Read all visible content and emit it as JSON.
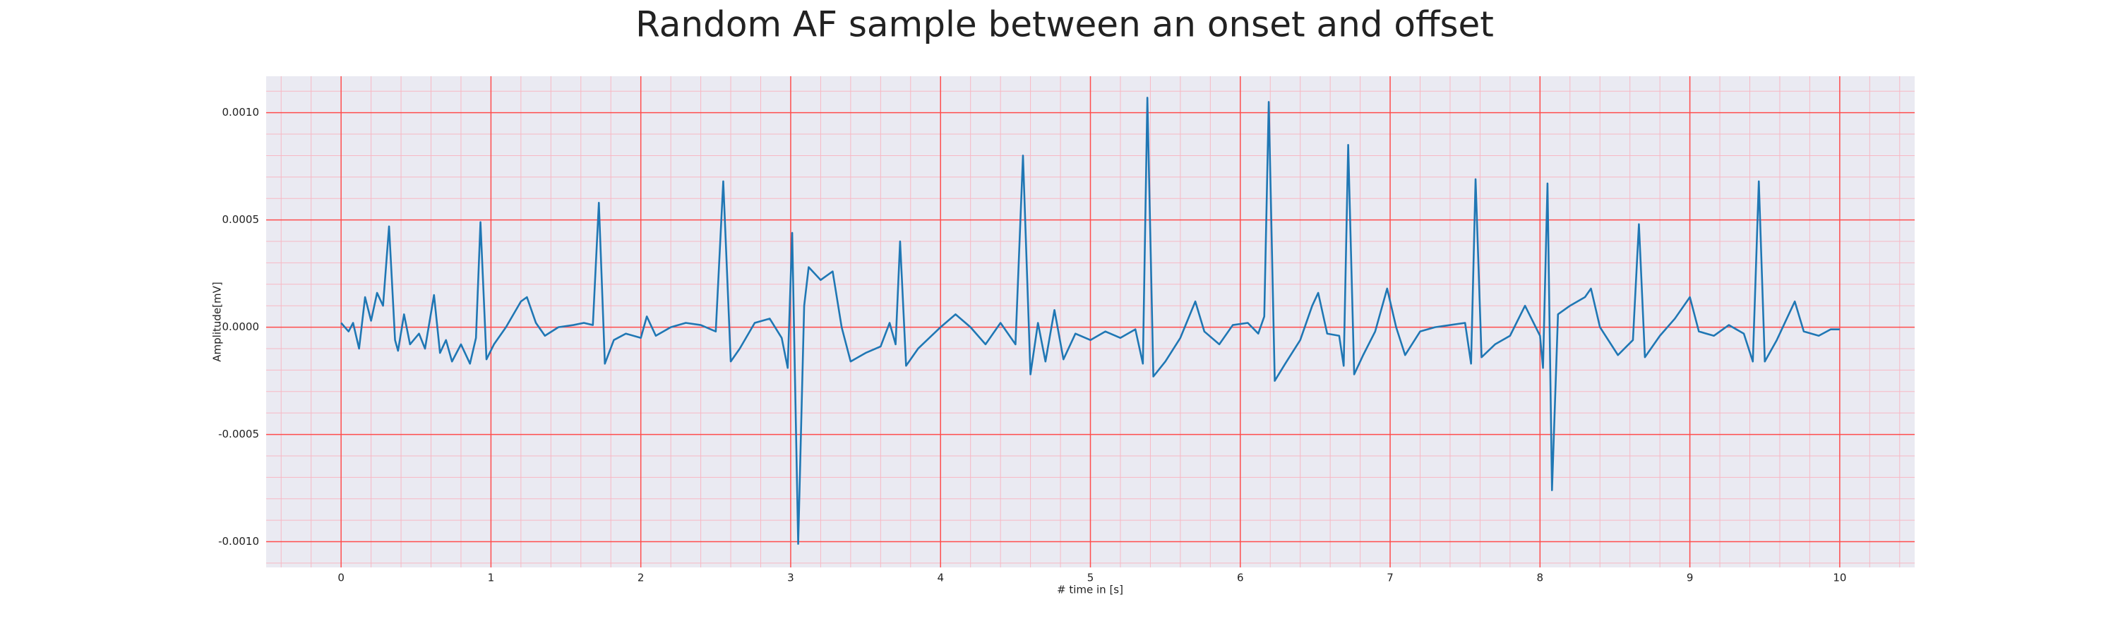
{
  "chart_data": {
    "type": "line",
    "title": "Random AF sample between an onset and offset",
    "xlabel": "# time in [s]",
    "ylabel": "Amplitude[mV]",
    "color": "#1f77b4",
    "grid": true,
    "grid_color": "#ff4d4d",
    "minor_grid": true,
    "minor_grid_color": "#f7b8c4",
    "background": "#eaeaf2",
    "xlim": [
      -0.5,
      10.5
    ],
    "ylim": [
      -0.00112,
      0.00117
    ],
    "xticks": [
      0,
      1,
      2,
      3,
      4,
      5,
      6,
      7,
      8,
      9,
      10
    ],
    "yticks": [
      {
        "value": -0.001,
        "label": "-0.0010"
      },
      {
        "value": -0.0005,
        "label": "-0.0005"
      },
      {
        "value": 0,
        "label": "0.0000"
      },
      {
        "value": 0.0005,
        "label": "0.0005"
      },
      {
        "value": 0.001,
        "label": "0.0010"
      }
    ],
    "x": [
      0.0,
      0.05,
      0.08,
      0.12,
      0.16,
      0.2,
      0.24,
      0.28,
      0.32,
      0.36,
      0.38,
      0.42,
      0.46,
      0.52,
      0.56,
      0.62,
      0.66,
      0.7,
      0.74,
      0.8,
      0.86,
      0.9,
      0.93,
      0.97,
      1.02,
      1.1,
      1.2,
      1.24,
      1.3,
      1.36,
      1.45,
      1.55,
      1.62,
      1.68,
      1.72,
      1.76,
      1.82,
      1.9,
      2.0,
      2.04,
      2.1,
      2.2,
      2.3,
      2.4,
      2.5,
      2.55,
      2.6,
      2.66,
      2.76,
      2.86,
      2.94,
      2.98,
      3.01,
      3.05,
      3.09,
      3.12,
      3.2,
      3.28,
      3.34,
      3.4,
      3.5,
      3.6,
      3.66,
      3.7,
      3.73,
      3.77,
      3.85,
      4.0,
      4.1,
      4.2,
      4.3,
      4.4,
      4.5,
      4.55,
      4.6,
      4.65,
      4.7,
      4.76,
      4.82,
      4.9,
      5.0,
      5.1,
      5.2,
      5.3,
      5.35,
      5.38,
      5.42,
      5.5,
      5.6,
      5.7,
      5.76,
      5.86,
      5.95,
      6.05,
      6.12,
      6.16,
      6.19,
      6.23,
      6.3,
      6.4,
      6.48,
      6.52,
      6.58,
      6.66,
      6.69,
      6.72,
      6.76,
      6.82,
      6.9,
      6.98,
      7.04,
      7.1,
      7.2,
      7.3,
      7.4,
      7.5,
      7.54,
      7.57,
      7.61,
      7.7,
      7.8,
      7.9,
      8.0,
      8.02,
      8.05,
      8.08,
      8.12,
      8.2,
      8.3,
      8.34,
      8.4,
      8.52,
      8.62,
      8.66,
      8.7,
      8.8,
      8.9,
      9.0,
      9.06,
      9.16,
      9.26,
      9.36,
      9.42,
      9.46,
      9.5,
      9.58,
      9.7,
      9.76,
      9.86,
      9.94,
      10.0
    ],
    "values": [
      2e-05,
      -2e-05,
      2e-05,
      -0.0001,
      0.00014,
      3e-05,
      0.00016,
      0.0001,
      0.00047,
      -6e-05,
      -0.00011,
      6e-05,
      -8e-05,
      -3e-05,
      -0.0001,
      0.00015,
      -0.00012,
      -6e-05,
      -0.00016,
      -8e-05,
      -0.00017,
      -5e-05,
      0.00049,
      -0.00015,
      -8e-05,
      0.0,
      0.00012,
      0.00014,
      2e-05,
      -4e-05,
      0.0,
      1e-05,
      2e-05,
      1e-05,
      0.00058,
      -0.00017,
      -6e-05,
      -3e-05,
      -5e-05,
      5e-05,
      -4e-05,
      0.0,
      2e-05,
      1e-05,
      -2e-05,
      0.00068,
      -0.00016,
      -0.0001,
      2e-05,
      4e-05,
      -5e-05,
      -0.00019,
      0.00044,
      -0.00101,
      0.0001,
      0.00028,
      0.00022,
      0.00026,
      0.0,
      -0.00016,
      -0.00012,
      -9e-05,
      2e-05,
      -8e-05,
      0.0004,
      -0.00018,
      -0.0001,
      0.0,
      6e-05,
      0.0,
      -8e-05,
      2e-05,
      -8e-05,
      0.0008,
      -0.00022,
      2e-05,
      -0.00016,
      8e-05,
      -0.00015,
      -3e-05,
      -6e-05,
      -2e-05,
      -5e-05,
      -1e-05,
      -0.00017,
      0.00107,
      -0.00023,
      -0.00016,
      -5e-05,
      0.00012,
      -2e-05,
      -8e-05,
      1e-05,
      2e-05,
      -3e-05,
      5e-05,
      0.00105,
      -0.00025,
      -0.00017,
      -6e-05,
      0.0001,
      0.00016,
      -3e-05,
      -4e-05,
      -0.00018,
      0.00085,
      -0.00022,
      -0.00013,
      -2e-05,
      0.00018,
      0.0,
      -0.00013,
      -2e-05,
      0.0,
      1e-05,
      2e-05,
      -0.00017,
      0.00069,
      -0.00014,
      -8e-05,
      -4e-05,
      0.0001,
      -4e-05,
      -0.00019,
      0.00067,
      -0.00076,
      6e-05,
      0.0001,
      0.00014,
      0.00018,
      0.0,
      -0.00013,
      -6e-05,
      0.00048,
      -0.00014,
      -4e-05,
      4e-05,
      0.00014,
      -2e-05,
      -4e-05,
      1e-05,
      -3e-05,
      -0.00016,
      0.00068,
      -0.00016,
      -6e-05,
      0.00012,
      -2e-05,
      -4e-05,
      -1e-05,
      -1e-05
    ]
  }
}
